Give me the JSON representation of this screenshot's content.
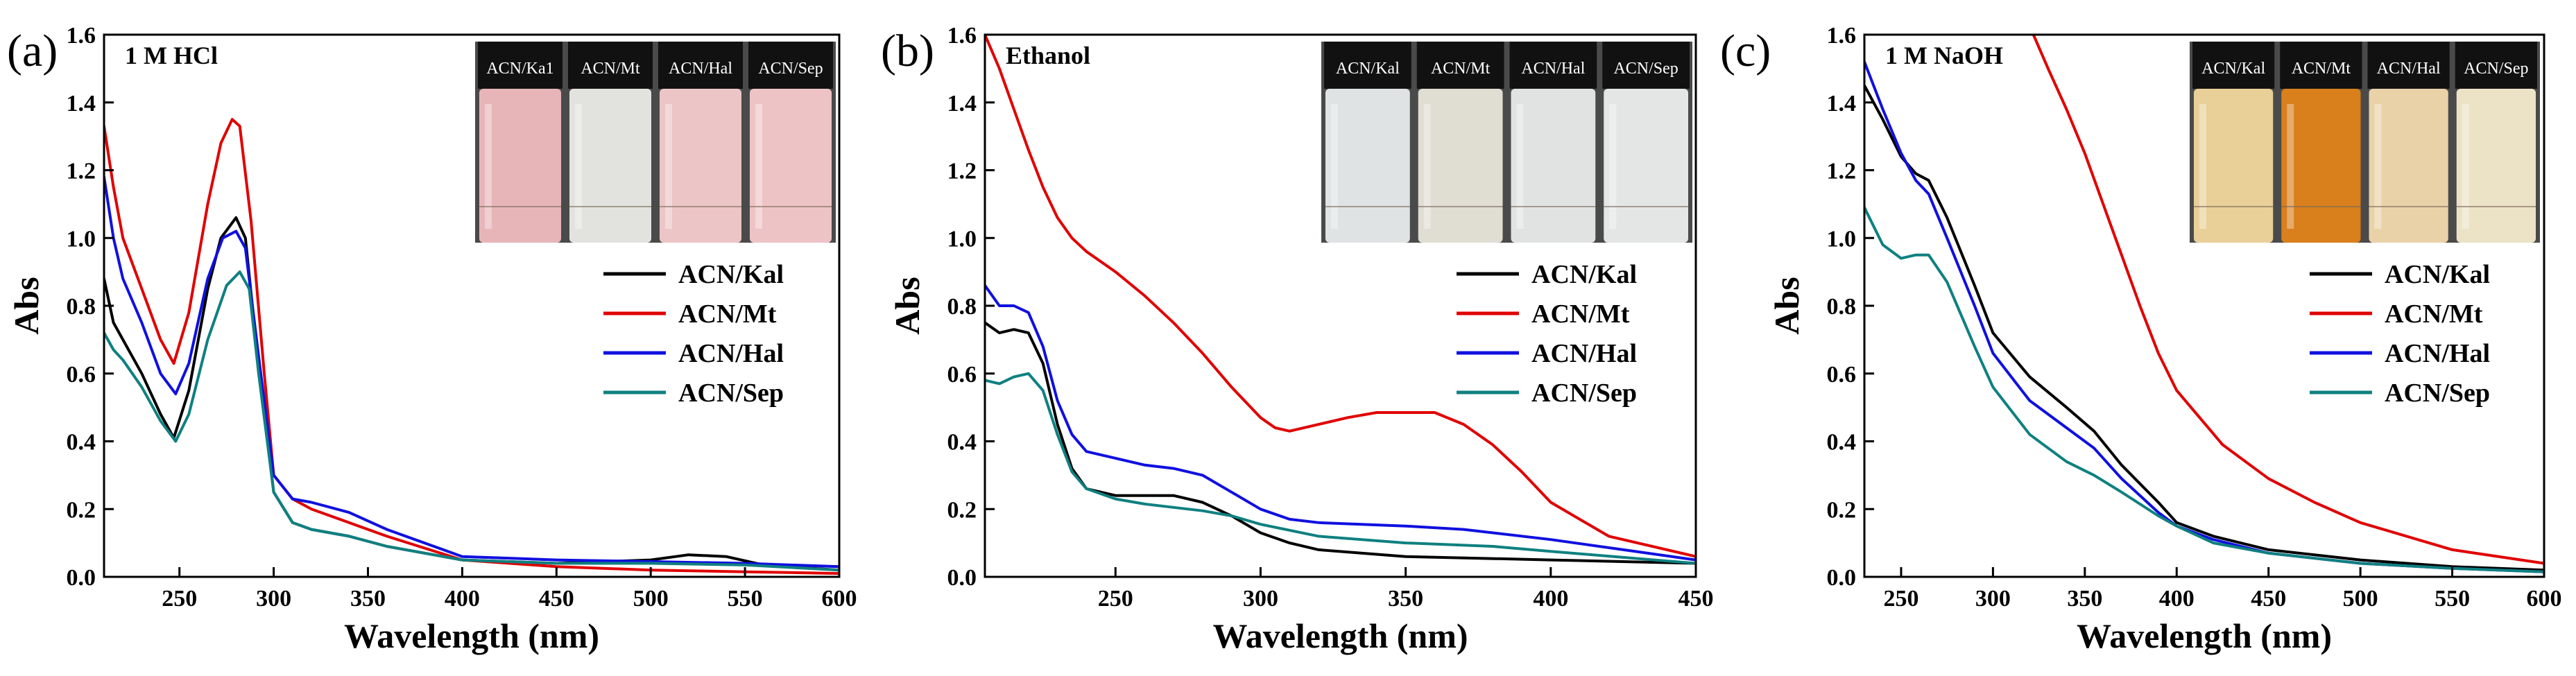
{
  "chart_data": [
    {
      "type": "line",
      "panel_label": "(a)",
      "condition_label": "1 M HCl",
      "xlabel": "Wavelength (nm)",
      "ylabel": "Abs",
      "xlim": [
        210,
        600
      ],
      "ylim": [
        0,
        1.6
      ],
      "xticks": [
        250,
        300,
        350,
        400,
        450,
        500,
        550,
        600
      ],
      "yticks": [
        0.0,
        0.2,
        0.4,
        0.6,
        0.8,
        1.0,
        1.2,
        1.4,
        1.6
      ],
      "legend_position": "right",
      "inset": {
        "labels": [
          "ACN/Ka1",
          "ACN/Mt",
          "ACN/Hal",
          "ACN/Sep"
        ],
        "vial_colors": [
          "#e7b5b8",
          "#e2e3de",
          "#ecc5c6",
          "#eec3c6"
        ]
      },
      "series": [
        {
          "name": "ACN/Kal",
          "color": "#000000",
          "x": [
            210,
            215,
            220,
            230,
            240,
            247,
            255,
            265,
            272,
            280,
            285,
            292,
            300,
            310,
            320,
            340,
            360,
            400,
            450,
            500,
            520,
            540,
            560,
            600
          ],
          "y": [
            0.88,
            0.75,
            0.7,
            0.6,
            0.48,
            0.41,
            0.55,
            0.85,
            1.0,
            1.06,
            1.0,
            0.62,
            0.25,
            0.16,
            0.14,
            0.12,
            0.09,
            0.05,
            0.04,
            0.05,
            0.065,
            0.06,
            0.035,
            0.02
          ]
        },
        {
          "name": "ACN/Mt",
          "color": "#e00000",
          "x": [
            210,
            215,
            220,
            230,
            240,
            247,
            255,
            265,
            272,
            278,
            282,
            288,
            295,
            300,
            310,
            320,
            340,
            360,
            400,
            450,
            500,
            550,
            600
          ],
          "y": [
            1.33,
            1.15,
            1.0,
            0.85,
            0.7,
            0.63,
            0.78,
            1.1,
            1.28,
            1.35,
            1.33,
            1.05,
            0.6,
            0.3,
            0.23,
            0.2,
            0.16,
            0.12,
            0.05,
            0.03,
            0.02,
            0.015,
            0.01
          ]
        },
        {
          "name": "ACN/Hal",
          "color": "#1010e0",
          "x": [
            210,
            215,
            220,
            230,
            240,
            248,
            255,
            265,
            273,
            280,
            285,
            292,
            300,
            310,
            320,
            340,
            360,
            400,
            450,
            500,
            550,
            600
          ],
          "y": [
            1.18,
            1.0,
            0.88,
            0.75,
            0.6,
            0.54,
            0.63,
            0.88,
            1.0,
            1.02,
            0.97,
            0.65,
            0.3,
            0.23,
            0.22,
            0.19,
            0.14,
            0.06,
            0.05,
            0.045,
            0.04,
            0.03
          ]
        },
        {
          "name": "ACN/Sep",
          "color": "#0f8080",
          "x": [
            210,
            215,
            220,
            230,
            240,
            248,
            255,
            265,
            275,
            282,
            287,
            292,
            300,
            310,
            320,
            340,
            360,
            400,
            450,
            500,
            550,
            600
          ],
          "y": [
            0.72,
            0.67,
            0.64,
            0.56,
            0.46,
            0.4,
            0.48,
            0.7,
            0.86,
            0.9,
            0.85,
            0.6,
            0.25,
            0.16,
            0.14,
            0.12,
            0.09,
            0.05,
            0.04,
            0.04,
            0.035,
            0.02
          ]
        }
      ]
    },
    {
      "type": "line",
      "panel_label": "(b)",
      "condition_label": "Ethanol",
      "xlabel": "Wavelength (nm)",
      "ylabel": "Abs",
      "xlim": [
        205,
        450
      ],
      "ylim": [
        0,
        1.6
      ],
      "xticks": [
        250,
        300,
        350,
        400,
        450
      ],
      "yticks": [
        0.0,
        0.2,
        0.4,
        0.6,
        0.8,
        1.0,
        1.2,
        1.4,
        1.6
      ],
      "legend_position": "right",
      "inset": {
        "labels": [
          "ACN/Kal",
          "ACN/Mt",
          "ACN/Hal",
          "ACN/Sep"
        ],
        "vial_colors": [
          "#dfe3e4",
          "#e0ddd3",
          "#e1e3e3",
          "#e4e6e5"
        ]
      },
      "series": [
        {
          "name": "ACN/Kal",
          "color": "#000000",
          "x": [
            205,
            210,
            215,
            220,
            225,
            230,
            235,
            240,
            250,
            260,
            270,
            280,
            290,
            300,
            310,
            320,
            350,
            400,
            450
          ],
          "y": [
            0.75,
            0.72,
            0.73,
            0.72,
            0.63,
            0.45,
            0.32,
            0.26,
            0.24,
            0.24,
            0.24,
            0.22,
            0.18,
            0.13,
            0.1,
            0.08,
            0.06,
            0.05,
            0.04
          ]
        },
        {
          "name": "ACN/Mt",
          "color": "#e00000",
          "x": [
            205,
            210,
            215,
            220,
            225,
            230,
            235,
            240,
            250,
            260,
            270,
            280,
            290,
            300,
            305,
            310,
            320,
            330,
            340,
            350,
            360,
            370,
            380,
            390,
            400,
            420,
            450
          ],
          "y": [
            1.6,
            1.5,
            1.38,
            1.26,
            1.15,
            1.06,
            1.0,
            0.96,
            0.9,
            0.83,
            0.75,
            0.66,
            0.56,
            0.47,
            0.44,
            0.43,
            0.45,
            0.47,
            0.485,
            0.485,
            0.485,
            0.45,
            0.39,
            0.31,
            0.22,
            0.12,
            0.06
          ]
        },
        {
          "name": "ACN/Hal",
          "color": "#1010e0",
          "x": [
            205,
            210,
            215,
            220,
            225,
            230,
            235,
            240,
            250,
            260,
            270,
            280,
            290,
            300,
            310,
            320,
            350,
            370,
            400,
            425,
            450
          ],
          "y": [
            0.86,
            0.8,
            0.8,
            0.78,
            0.68,
            0.52,
            0.42,
            0.37,
            0.35,
            0.33,
            0.32,
            0.3,
            0.25,
            0.2,
            0.17,
            0.16,
            0.15,
            0.14,
            0.11,
            0.08,
            0.05
          ]
        },
        {
          "name": "ACN/Sep",
          "color": "#0f8080",
          "x": [
            205,
            210,
            215,
            220,
            225,
            230,
            235,
            240,
            250,
            260,
            270,
            280,
            290,
            300,
            320,
            350,
            380,
            400,
            450
          ],
          "y": [
            0.58,
            0.57,
            0.59,
            0.6,
            0.55,
            0.42,
            0.31,
            0.26,
            0.23,
            0.215,
            0.205,
            0.195,
            0.18,
            0.155,
            0.12,
            0.1,
            0.09,
            0.075,
            0.04
          ]
        }
      ]
    },
    {
      "type": "line",
      "panel_label": "(c)",
      "condition_label": "1 M NaOH",
      "xlabel": "Wavelength (nm)",
      "ylabel": "Abs",
      "xlim": [
        230,
        600
      ],
      "ylim": [
        0,
        1.6
      ],
      "xticks": [
        250,
        300,
        350,
        400,
        450,
        500,
        550,
        600
      ],
      "yticks": [
        0.0,
        0.2,
        0.4,
        0.6,
        0.8,
        1.0,
        1.2,
        1.4,
        1.6
      ],
      "legend_position": "right",
      "inset": {
        "labels": [
          "ACN/Kal",
          "ACN/Mt",
          "ACN/Hal",
          "ACN/Sep"
        ],
        "vial_colors": [
          "#e9cf98",
          "#d97f1c",
          "#ead2a8",
          "#ece2c6"
        ]
      },
      "series": [
        {
          "name": "ACN/Kal",
          "color": "#000000",
          "x": [
            230,
            240,
            250,
            258,
            265,
            275,
            290,
            300,
            320,
            340,
            355,
            370,
            390,
            400,
            420,
            450,
            500,
            550,
            600
          ],
          "y": [
            1.45,
            1.35,
            1.24,
            1.19,
            1.17,
            1.06,
            0.86,
            0.72,
            0.59,
            0.5,
            0.43,
            0.33,
            0.22,
            0.16,
            0.12,
            0.08,
            0.05,
            0.03,
            0.02
          ]
        },
        {
          "name": "ACN/Mt",
          "color": "#e00000",
          "x": [
            322,
            330,
            340,
            350,
            360,
            370,
            380,
            390,
            400,
            425,
            450,
            475,
            500,
            550,
            600
          ],
          "y": [
            1.6,
            1.5,
            1.38,
            1.25,
            1.1,
            0.95,
            0.8,
            0.66,
            0.55,
            0.39,
            0.29,
            0.22,
            0.16,
            0.08,
            0.04
          ]
        },
        {
          "name": "ACN/Hal",
          "color": "#1010e0",
          "x": [
            230,
            240,
            250,
            258,
            265,
            275,
            290,
            300,
            320,
            340,
            355,
            370,
            390,
            400,
            420,
            450,
            500,
            550,
            600
          ],
          "y": [
            1.52,
            1.38,
            1.25,
            1.17,
            1.13,
            1.0,
            0.8,
            0.66,
            0.52,
            0.44,
            0.38,
            0.29,
            0.19,
            0.15,
            0.11,
            0.07,
            0.04,
            0.025,
            0.015
          ]
        },
        {
          "name": "ACN/Sep",
          "color": "#0f8080",
          "x": [
            230,
            240,
            250,
            258,
            265,
            275,
            290,
            300,
            320,
            340,
            355,
            370,
            390,
            400,
            420,
            450,
            500,
            550,
            600
          ],
          "y": [
            1.09,
            0.98,
            0.94,
            0.95,
            0.95,
            0.87,
            0.68,
            0.56,
            0.42,
            0.34,
            0.3,
            0.25,
            0.18,
            0.15,
            0.1,
            0.07,
            0.04,
            0.025,
            0.015
          ]
        }
      ]
    }
  ]
}
